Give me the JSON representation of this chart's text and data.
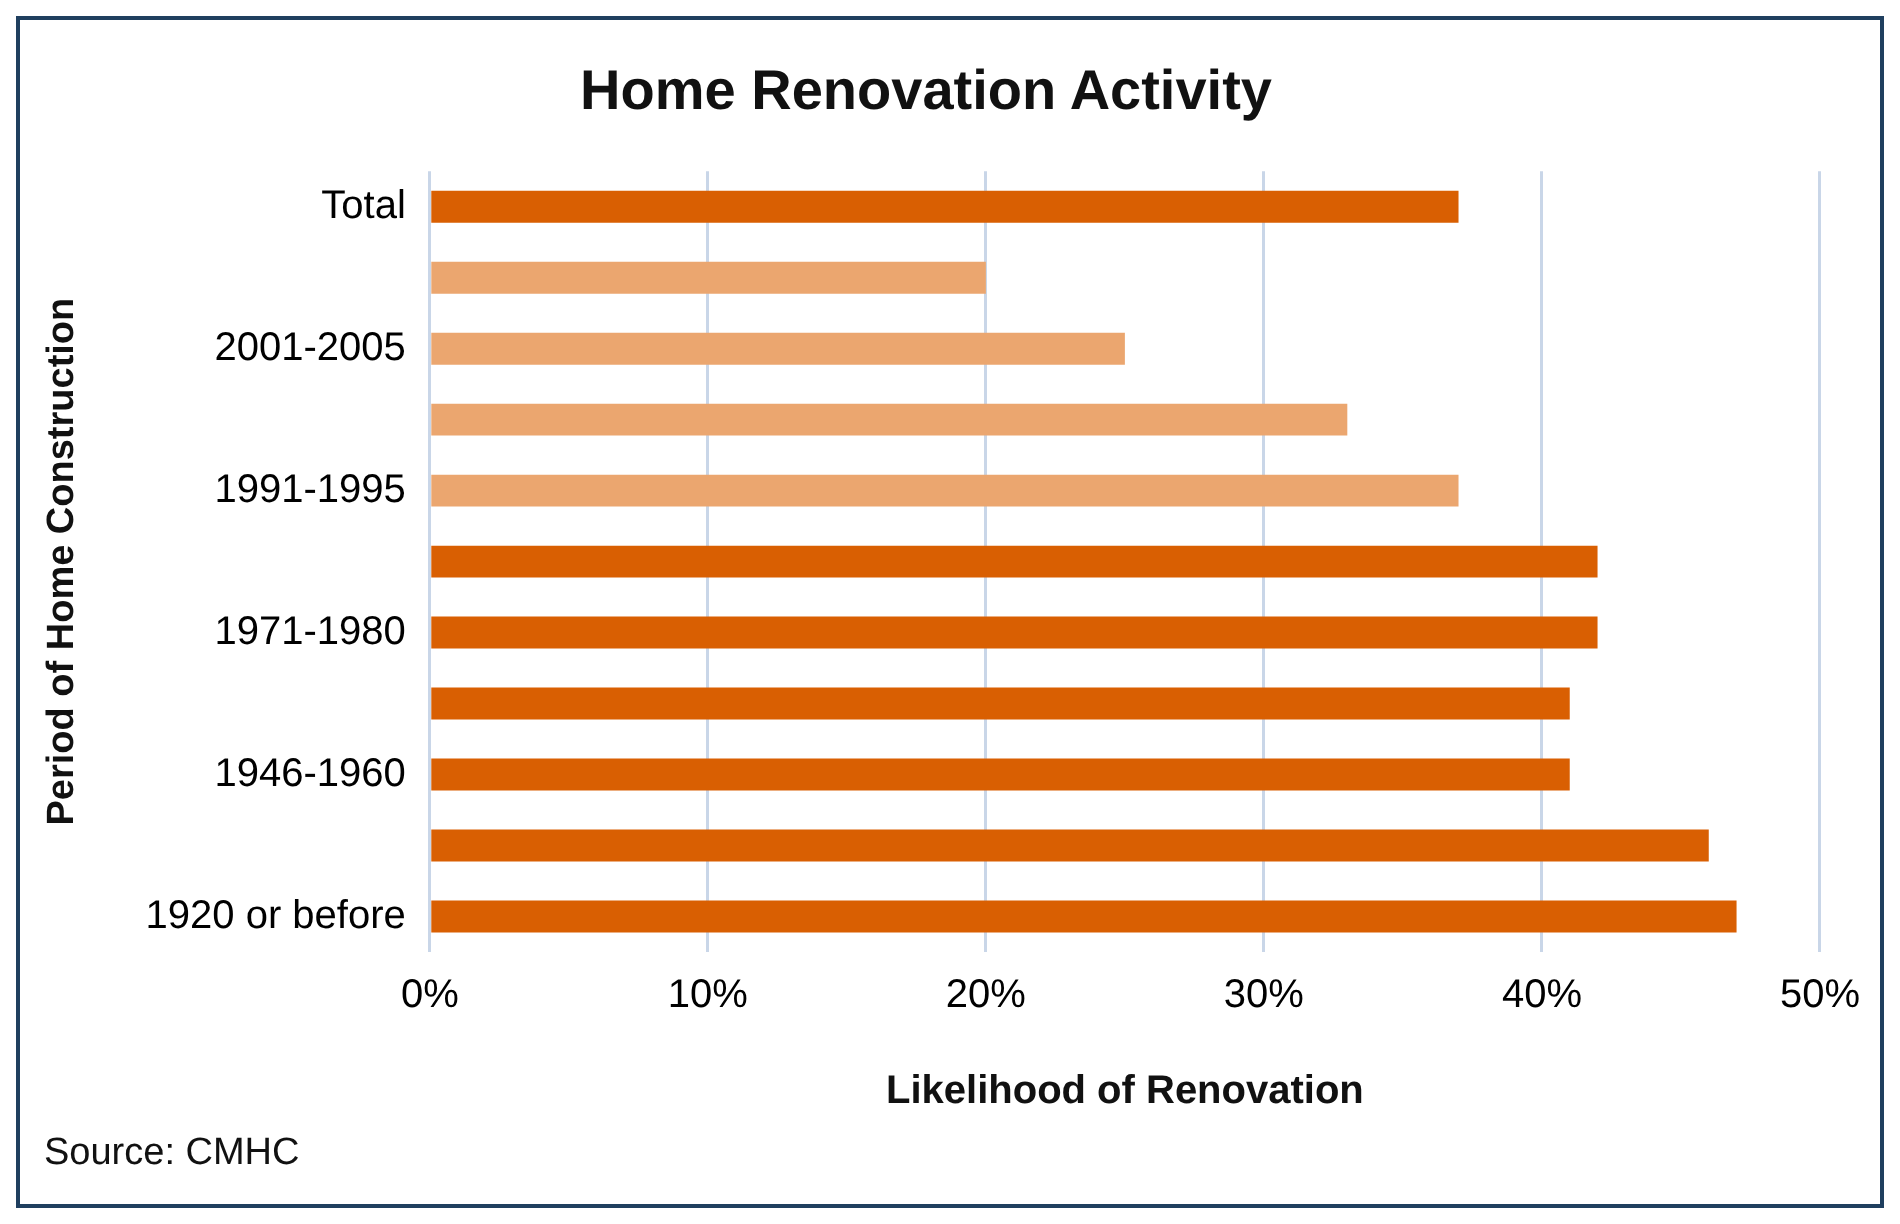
{
  "chart_data": {
    "type": "bar",
    "orientation": "horizontal",
    "title": "Home Renovation Activity",
    "xlabel": "Likelihood of Renovation",
    "ylabel": "Period of Home Construction",
    "categories": [
      "Total",
      null,
      "2001-2005",
      null,
      "1991-1995",
      null,
      "1971-1980",
      null,
      "1946-1960",
      null,
      "1920 or before"
    ],
    "values": [
      37,
      20,
      25,
      33,
      37,
      42,
      42,
      41,
      41,
      46,
      47
    ],
    "colors": [
      "#d95f02",
      "#eba66f",
      "#eba66f",
      "#eba66f",
      "#eba66f",
      "#d95f02",
      "#d95f02",
      "#d95f02",
      "#d95f02",
      "#d95f02",
      "#d95f02"
    ],
    "xlim": [
      0,
      50
    ],
    "xticks": [
      {
        "value": 0,
        "label": "0%"
      },
      {
        "value": 10,
        "label": "10%"
      },
      {
        "value": 20,
        "label": "20%"
      },
      {
        "value": 30,
        "label": "30%"
      },
      {
        "value": 40,
        "label": "40%"
      },
      {
        "value": 50,
        "label": "50%"
      }
    ],
    "grid": "x",
    "legend": false,
    "annotations": [
      "Source: CMHC"
    ]
  }
}
